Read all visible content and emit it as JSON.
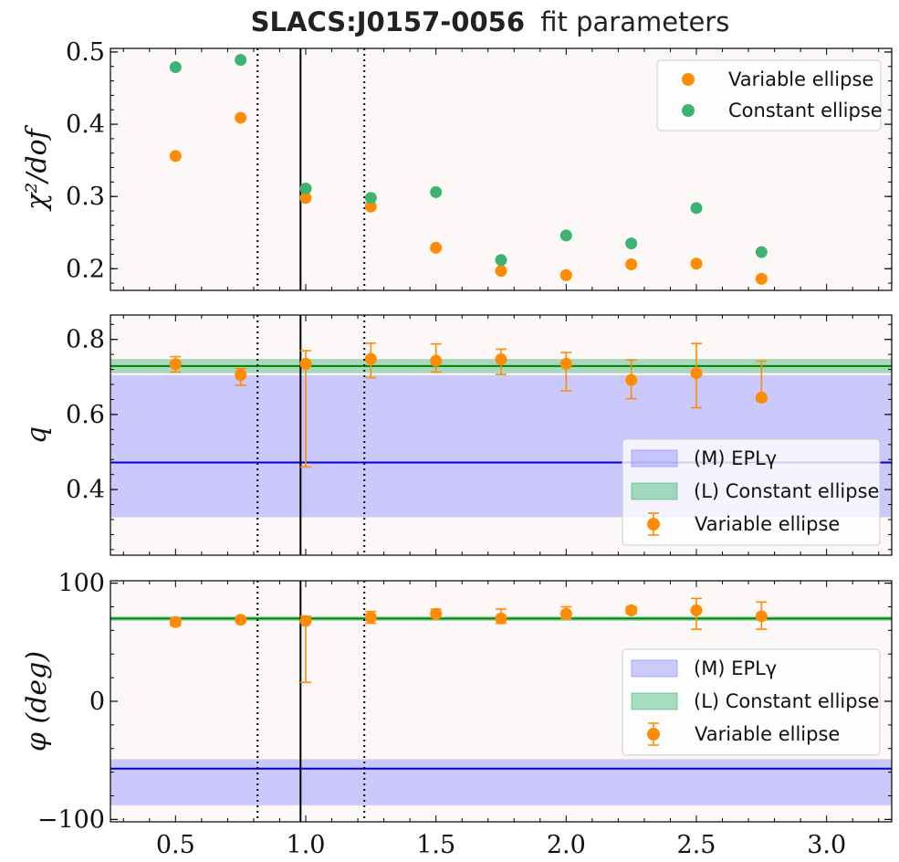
{
  "title": {
    "object_name": "SLACS:J0157-0056",
    "suffix": "fit parameters"
  },
  "colors": {
    "variable": "#ff8c00",
    "constant": "#3cb371",
    "model_band": "#8080ff",
    "model_line": "#0000dd",
    "constant_band": "#3cb371",
    "constant_line": "#008000",
    "panel_bg": "#fdf8f8"
  },
  "chart_data": [
    {
      "type": "scatter",
      "panel": "chi2",
      "ylabel": "χ²/dof",
      "xlim": [
        0.25,
        3.25
      ],
      "ylim": [
        0.17,
        0.505
      ],
      "xticks": [
        "0.5",
        "1.0",
        "1.5",
        "2.0",
        "2.5",
        "3.0"
      ],
      "yticks": [
        0.2,
        0.3,
        0.4,
        0.5
      ],
      "ytick_labels": [
        "0.2",
        "0.3",
        "0.4",
        "0.5"
      ],
      "grid": false,
      "legend": "top-right",
      "vlines": {
        "solid": 0.98,
        "dotted": [
          0.815,
          1.225
        ]
      },
      "series": [
        {
          "name": "Variable ellipse",
          "x": [
            0.5,
            0.75,
            1.0,
            1.25,
            1.5,
            1.75,
            2.0,
            2.25,
            2.5,
            2.75
          ],
          "y": [
            0.356,
            0.409,
            0.298,
            0.286,
            0.229,
            0.197,
            0.191,
            0.206,
            0.207,
            0.186
          ]
        },
        {
          "name": "Constant ellipse",
          "x": [
            0.5,
            0.75,
            1.0,
            1.25,
            1.5,
            1.75,
            2.0,
            2.25,
            2.5,
            2.75
          ],
          "y": [
            0.479,
            0.489,
            0.311,
            0.298,
            0.306,
            0.212,
            0.246,
            0.235,
            0.284,
            0.223
          ]
        }
      ]
    },
    {
      "type": "scatter",
      "panel": "q",
      "ylabel": "q",
      "xlim": [
        0.25,
        3.25
      ],
      "ylim": [
        0.225,
        0.865
      ],
      "yticks": [
        0.4,
        0.6,
        0.8
      ],
      "ytick_labels": [
        "0.4",
        "0.6",
        "0.8"
      ],
      "grid": false,
      "legend": "lower-right",
      "vlines": {
        "solid": 0.98,
        "dotted": [
          0.815,
          1.225
        ]
      },
      "bands": [
        {
          "name": "(M) EPLγ",
          "center": 0.472,
          "lower": 0.326,
          "upper": 0.705
        },
        {
          "name": "(L) Constant ellipse",
          "center": 0.729,
          "lower": 0.71,
          "upper": 0.748
        }
      ],
      "series": [
        {
          "name": "Variable ellipse",
          "x": [
            0.5,
            0.75,
            1.0,
            1.25,
            1.5,
            1.75,
            2.0,
            2.25,
            2.5,
            2.75
          ],
          "y": [
            0.734,
            0.705,
            0.735,
            0.748,
            0.743,
            0.747,
            0.735,
            0.692,
            0.71,
            0.645
          ],
          "yerr_low": [
            0.021,
            0.027,
            0.275,
            0.05,
            0.03,
            0.04,
            0.072,
            0.05,
            0.092,
            0.01
          ],
          "yerr_high": [
            0.02,
            0.017,
            0.035,
            0.042,
            0.045,
            0.027,
            0.03,
            0.053,
            0.079,
            0.097
          ]
        }
      ]
    },
    {
      "type": "scatter",
      "panel": "phi",
      "ylabel": "φ (deg)",
      "xlim": [
        0.25,
        3.25
      ],
      "ylim": [
        -102,
        102
      ],
      "yticks": [
        -100,
        0,
        100
      ],
      "ytick_labels": [
        "−100",
        "0",
        "100"
      ],
      "xticks": [
        0.5,
        1.0,
        1.5,
        2.0,
        2.5,
        3.0
      ],
      "xtick_labels": [
        "0.5",
        "1.0",
        "1.5",
        "2.0",
        "2.5",
        "3.0"
      ],
      "grid": false,
      "legend": "center-right",
      "vlines": {
        "solid": 0.98,
        "dotted": [
          0.815,
          1.225
        ]
      },
      "bands": [
        {
          "name": "(M) EPLγ",
          "center": -57,
          "lower": -88,
          "upper": -49
        },
        {
          "name": "(L) Constant ellipse",
          "center": 70,
          "lower": 68,
          "upper": 72
        }
      ],
      "series": [
        {
          "name": "Variable ellipse",
          "x": [
            0.5,
            0.75,
            1.0,
            1.25,
            1.5,
            1.75,
            2.0,
            2.25,
            2.5,
            2.75
          ],
          "y": [
            67,
            69,
            68,
            71,
            74,
            70,
            74,
            77,
            77,
            72
          ],
          "yerr_low": [
            3,
            2,
            52,
            5,
            3,
            4,
            4,
            3,
            16,
            11
          ],
          "yerr_high": [
            3,
            2,
            4,
            5,
            4,
            8,
            6,
            3,
            10,
            12
          ]
        }
      ]
    }
  ],
  "legends": {
    "chi2": [
      "Variable ellipse",
      "Constant ellipse"
    ],
    "q": [
      "(M) EPLγ",
      "(L) Constant ellipse",
      "Variable ellipse"
    ],
    "phi": [
      "(M) EPLγ",
      "(L) Constant ellipse",
      "Variable ellipse"
    ]
  }
}
